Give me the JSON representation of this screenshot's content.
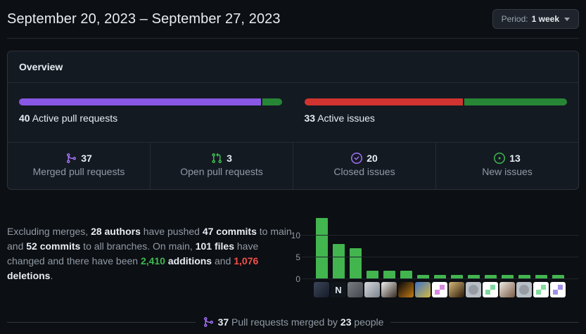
{
  "header": {
    "title": "September 20, 2023 – September 27, 2023",
    "period_button": {
      "prefix": "Period:",
      "value": "1 week"
    }
  },
  "overview": {
    "title": "Overview",
    "pull_requests": {
      "count": "40",
      "label": "Active pull requests",
      "merged_pct": 92.5,
      "open_pct": 7.5
    },
    "issues": {
      "count": "33",
      "label": "Active issues",
      "closed_pct": 60.6,
      "new_pct": 39.4
    },
    "stats": [
      {
        "icon": "git-merge-icon",
        "value": "37",
        "label": "Merged pull requests"
      },
      {
        "icon": "git-pull-request-icon",
        "value": "3",
        "label": "Open pull requests"
      },
      {
        "icon": "issue-closed-icon",
        "value": "20",
        "label": "Closed issues"
      },
      {
        "icon": "issue-opened-icon",
        "value": "13",
        "label": "New issues"
      }
    ]
  },
  "summary": {
    "segments": [
      {
        "text": "Excluding merges, ",
        "style": "muted"
      },
      {
        "text": "28 authors",
        "style": "strong"
      },
      {
        "text": " have pushed ",
        "style": "muted"
      },
      {
        "text": "47 commits",
        "style": "strong"
      },
      {
        "text": " to main and ",
        "style": "muted"
      },
      {
        "text": "52 commits",
        "style": "strong"
      },
      {
        "text": " to all branches. On main, ",
        "style": "muted"
      },
      {
        "text": "101 files",
        "style": "strong"
      },
      {
        "text": " have changed and there have been ",
        "style": "muted"
      },
      {
        "text": "2,410",
        "style": "additions"
      },
      {
        "text": " ",
        "style": "muted"
      },
      {
        "text": "additions",
        "style": "strong"
      },
      {
        "text": " and ",
        "style": "muted"
      },
      {
        "text": "1,076",
        "style": "deletions"
      },
      {
        "text": " ",
        "style": "muted"
      },
      {
        "text": "deletions",
        "style": "strong"
      },
      {
        "text": ".",
        "style": "muted"
      }
    ]
  },
  "chart_data": {
    "type": "bar",
    "title": "Commits per author (bar per contributor avatar)",
    "x_axis": "contributor avatars",
    "categories": [
      "author-1",
      "author-2",
      "author-3",
      "author-4",
      "author-5",
      "author-6",
      "author-7",
      "author-8",
      "author-9",
      "author-10",
      "author-11",
      "author-12",
      "author-13",
      "author-14",
      "author-15"
    ],
    "values": [
      14,
      8,
      7,
      2,
      2,
      2,
      1,
      1,
      1,
      1,
      1,
      1,
      1,
      1,
      1
    ],
    "ylabel": "",
    "xlabel": "",
    "yticks": [
      0,
      5,
      10
    ],
    "ylim": [
      0,
      16
    ],
    "grid": true,
    "bar_color": "#42b54f",
    "avatars": [
      {
        "kind": "photo",
        "a": "#3c465a",
        "b": "#141a26"
      },
      {
        "kind": "letter",
        "a": "#10141b",
        "b": "#dfe6ee",
        "letter": "N"
      },
      {
        "kind": "photo",
        "a": "#7a7e83",
        "b": "#43474d"
      },
      {
        "kind": "photo",
        "a": "#d7dade",
        "b": "#7c838c"
      },
      {
        "kind": "photo",
        "a": "#efefef",
        "b": "#35291f"
      },
      {
        "kind": "photo",
        "a": "#05060a",
        "b": "#c27b13"
      },
      {
        "kind": "photo",
        "a": "#3f74c7",
        "b": "#d7b83f"
      },
      {
        "kind": "identicon",
        "a": "#ffffff",
        "b": "#d98ae0"
      },
      {
        "kind": "photo",
        "a": "#d9b97a",
        "b": "#2a1a07"
      },
      {
        "kind": "octocat",
        "a": "#b9bfc6",
        "b": "#969ca3"
      },
      {
        "kind": "identicon",
        "a": "#ffffff",
        "b": "#7fd9a2"
      },
      {
        "kind": "photo",
        "a": "#ece9e4",
        "b": "#7a5a44"
      },
      {
        "kind": "octocat",
        "a": "#b9bfc6",
        "b": "#969ca3"
      },
      {
        "kind": "identicon",
        "a": "#ffffff",
        "b": "#83dd9e"
      },
      {
        "kind": "identicon",
        "a": "#ffffff",
        "b": "#a18fe8"
      }
    ]
  },
  "merged_by": {
    "segments": [
      {
        "text": "37",
        "style": "strong"
      },
      {
        "text": " Pull requests merged by ",
        "style": "muted"
      },
      {
        "text": "23",
        "style": "strong"
      },
      {
        "text": " people",
        "style": "muted"
      }
    ]
  },
  "colors": {
    "fg": "#e8edf3",
    "muted": "#909aa5",
    "page_bg": "#0c0f13",
    "panel_bg": "#141a22",
    "panel_border": "#2c323a",
    "divider": "#252b33",
    "gridline": "#20252d",
    "accent_purple": "#8957e5",
    "icon_purple": "#a371f7",
    "icon_green": "#3fb950",
    "progress_green": "#268636",
    "progress_red": "#d13430",
    "chart_green": "#42b54f",
    "additions_green": "#3fb950",
    "deletions_red": "#f4504b",
    "line": "#30363d"
  }
}
